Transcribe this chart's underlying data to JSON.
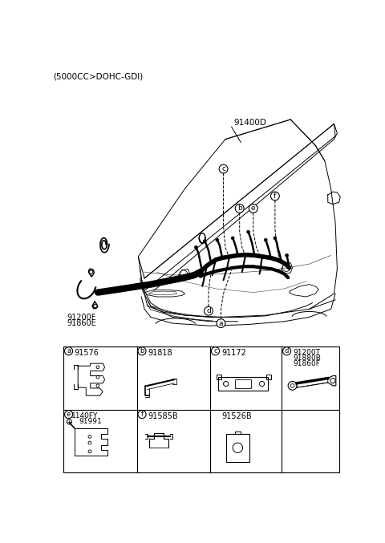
{
  "title": "(5000CC>DOHC-GDI)",
  "bg_color": "#ffffff",
  "text_color": "#000000",
  "label_91400D": "91400D",
  "label_91200F": "91200F",
  "label_91860E": "91860E",
  "figsize": [
    4.8,
    6.77
  ],
  "dpi": 100,
  "table": {
    "row1": [
      {
        "cell": "a",
        "part": "91576"
      },
      {
        "cell": "b",
        "part": "91818"
      },
      {
        "cell": "c",
        "part": "91172"
      },
      {
        "cell": "d",
        "parts": [
          "91200T",
          "91880B",
          "91860F"
        ]
      }
    ],
    "row2": [
      {
        "cell": "e",
        "parts": [
          "1140FY",
          "91991"
        ]
      },
      {
        "cell": "f",
        "part": "91585B"
      },
      {
        "cell": "",
        "part": "91526B"
      },
      {
        "cell": "",
        "part": ""
      }
    ]
  }
}
